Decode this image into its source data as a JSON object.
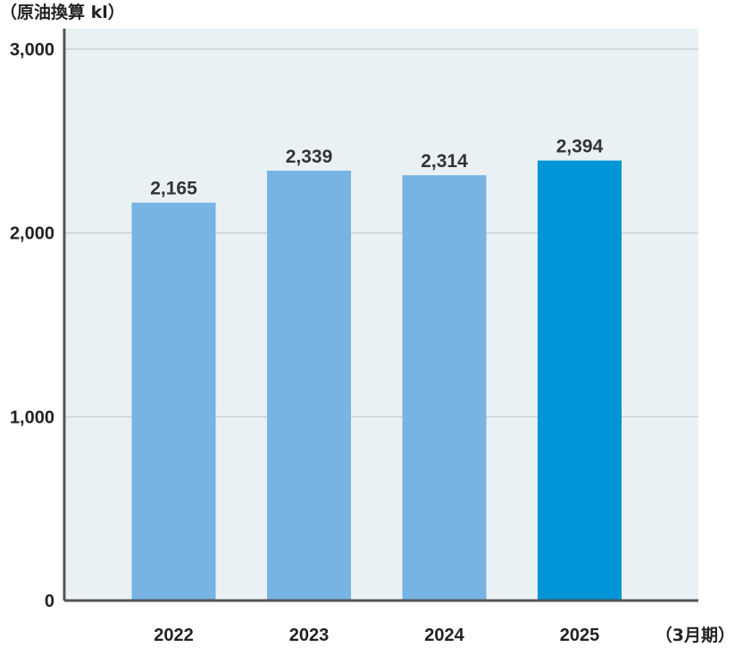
{
  "chart_data": {
    "type": "bar",
    "unit_label": "（原油換算 kl）",
    "x_unit_label": "（3月期）",
    "categories": [
      "2022",
      "2023",
      "2024",
      "2025"
    ],
    "values": [
      2165,
      2339,
      2314,
      2394
    ],
    "value_labels": [
      "2,165",
      "2,339",
      "2,314",
      "2,394"
    ],
    "ylim": [
      0,
      3000
    ],
    "yticks": [
      0,
      1000,
      2000,
      3000
    ],
    "ytick_labels": [
      "0",
      "1,000",
      "2,000",
      "3,000"
    ],
    "grid": true,
    "colors": {
      "bar": "#78b4e3",
      "bar_highlight": "#0095d6",
      "plot_background": "#eaf1f4",
      "grid": "#c9d2d7",
      "axis": "#555555"
    },
    "highlight_index": 3
  }
}
